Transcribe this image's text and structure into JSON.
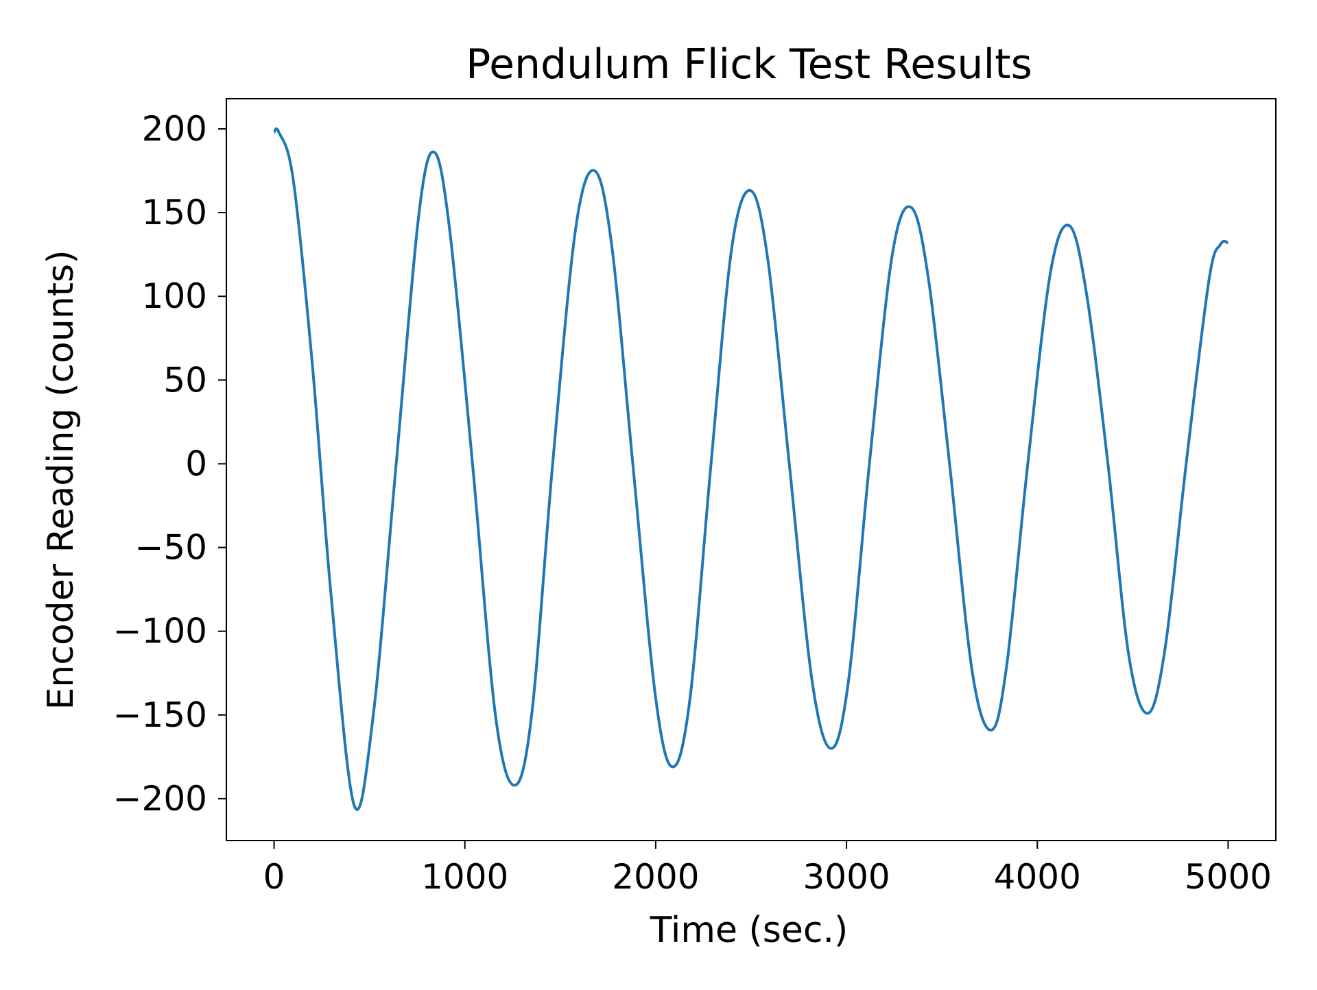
{
  "chart_data": {
    "type": "line",
    "title": "Pendulum Flick Test Results",
    "xlabel": "Time (sec.)",
    "ylabel": "Encoder Reading (counts)",
    "xlim": [
      -250,
      5250
    ],
    "ylim": [
      -225,
      218
    ],
    "x_ticks": [
      0,
      1000,
      2000,
      3000,
      4000,
      5000
    ],
    "x_tick_labels": [
      "0",
      "1000",
      "2000",
      "3000",
      "4000",
      "5000"
    ],
    "y_ticks": [
      200,
      150,
      100,
      50,
      0,
      -50,
      -100,
      -150,
      -200
    ],
    "y_tick_labels": [
      "200",
      "150",
      "100",
      "50",
      "0",
      "−50",
      "−100",
      "−150",
      "−200"
    ],
    "grid": false,
    "legend": "none",
    "series": [
      {
        "color": "#1f77b4",
        "x": [
          0,
          25,
          100,
          200,
          300,
          420,
          520,
          640,
          760,
          840,
          920,
          1040,
          1160,
          1260,
          1350,
          1460,
          1580,
          1680,
          1770,
          1880,
          2000,
          2090,
          2180,
          2290,
          2400,
          2500,
          2590,
          2700,
          2820,
          2920,
          3010,
          3120,
          3240,
          3340,
          3430,
          3540,
          3660,
          3760,
          3840,
          3950,
          4070,
          4170,
          4260,
          4370,
          4480,
          4580,
          4670,
          4780,
          4900,
          4960,
          5000
        ],
        "y": [
          198,
          198,
          170,
          60,
          -80,
          -204,
          -150,
          0,
          150,
          186,
          140,
          0,
          -150,
          -192,
          -150,
          0,
          140,
          175,
          130,
          0,
          -140,
          -181,
          -140,
          0,
          130,
          163,
          120,
          0,
          -130,
          -170,
          -130,
          0,
          125,
          153,
          110,
          0,
          -125,
          -159,
          -120,
          0,
          115,
          142,
          100,
          0,
          -115,
          -149,
          -110,
          0,
          110,
          131,
          132
        ]
      }
    ]
  }
}
